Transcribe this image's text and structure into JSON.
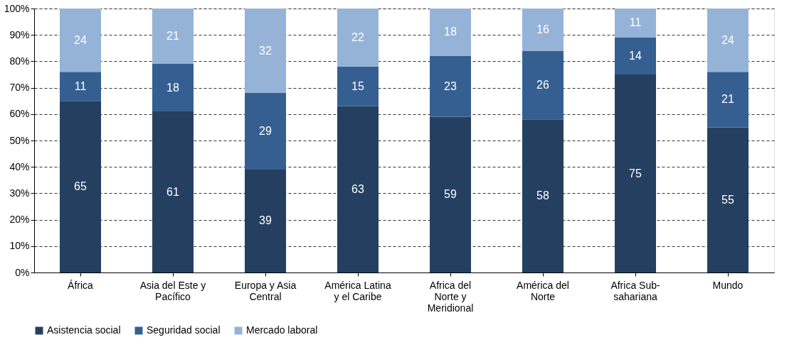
{
  "chart_data": {
    "type": "bar",
    "stacked": true,
    "data_labels": true,
    "grid": "y",
    "legend": "bottom",
    "categories": [
      "África",
      "Asia del Este y Pacífico",
      "Europa y Asia Central",
      "América Latina y el Caribe",
      "Africa del Norte y Meridional",
      "América del Norte",
      "Africa Sub-sahariana",
      "Mundo"
    ],
    "ylim": [
      0,
      100
    ],
    "yticks": [
      {
        "value": 0,
        "label": "0%"
      },
      {
        "value": 10,
        "label": "10%"
      },
      {
        "value": 20,
        "label": "20%"
      },
      {
        "value": 30,
        "label": "30%"
      },
      {
        "value": 40,
        "label": "40%"
      },
      {
        "value": 50,
        "label": "50%"
      },
      {
        "value": 60,
        "label": "60%"
      },
      {
        "value": 70,
        "label": "70%"
      },
      {
        "value": 80,
        "label": "80%"
      },
      {
        "value": 90,
        "label": "90%"
      },
      {
        "value": 100,
        "label": "100%"
      }
    ],
    "series": [
      {
        "name": "Asistencia social",
        "color": "#243f60",
        "values": [
          65,
          61,
          39,
          63,
          59,
          58,
          75,
          55
        ]
      },
      {
        "name": "Seguridad social",
        "color": "#365f91",
        "values": [
          11,
          18,
          29,
          15,
          23,
          26,
          14,
          21
        ]
      },
      {
        "name": "Mercado laboral",
        "color": "#95b3d7",
        "values": [
          24,
          21,
          32,
          22,
          18,
          16,
          11,
          24
        ]
      }
    ]
  }
}
